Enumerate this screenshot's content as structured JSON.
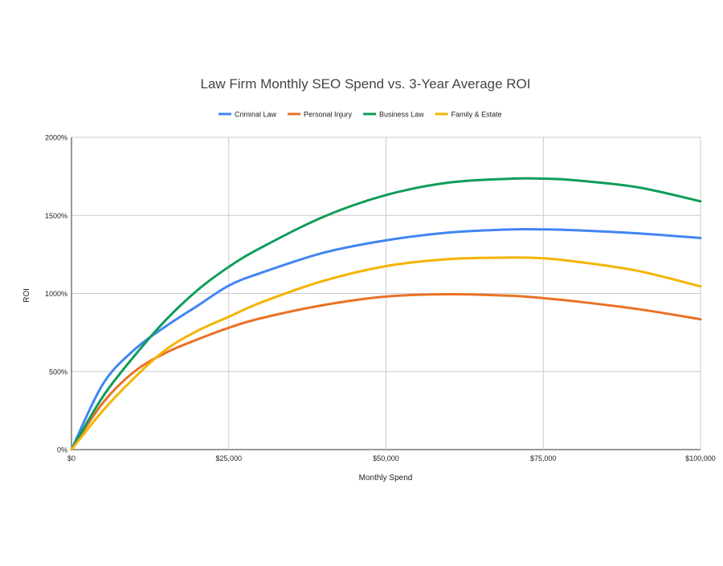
{
  "chart_data": {
    "type": "line",
    "title": "Law Firm Monthly SEO Spend vs.  3-Year Average ROI",
    "xlabel": "Monthly Spend",
    "ylabel": "ROI",
    "xlim": [
      0,
      100000
    ],
    "ylim": [
      0,
      2000
    ],
    "x_ticks": [
      0,
      25000,
      50000,
      75000,
      100000
    ],
    "x_tick_labels": [
      "$0",
      "$25,000",
      "$50,000",
      "$75,000",
      "$100,000"
    ],
    "y_ticks": [
      0,
      500,
      1000,
      1500,
      2000
    ],
    "y_tick_labels": [
      "0%",
      "500%",
      "1000%",
      "1500%",
      "2000%"
    ],
    "grid": true,
    "legend_position": "top",
    "x": [
      0,
      5000,
      10000,
      15000,
      20000,
      25000,
      30000,
      40000,
      50000,
      60000,
      70000,
      75000,
      80000,
      90000,
      100000
    ],
    "series": [
      {
        "name": "Criminal Law",
        "color": "#4285f4",
        "values": [
          0,
          420,
          640,
          790,
          920,
          1050,
          1130,
          1260,
          1340,
          1390,
          1410,
          1410,
          1405,
          1385,
          1355
        ]
      },
      {
        "name": "Personal Injury",
        "color": "#ea7125",
        "values": [
          0,
          300,
          500,
          620,
          705,
          780,
          840,
          925,
          980,
          995,
          985,
          970,
          950,
          900,
          835
        ]
      },
      {
        "name": "Business Law",
        "color": "#0f9d58",
        "values": [
          0,
          340,
          600,
          830,
          1020,
          1170,
          1290,
          1490,
          1630,
          1710,
          1735,
          1735,
          1725,
          1680,
          1590
        ]
      },
      {
        "name": "Family & Estate",
        "color": "#f4b400",
        "values": [
          0,
          250,
          460,
          640,
          760,
          850,
          940,
          1080,
          1175,
          1220,
          1230,
          1225,
          1205,
          1145,
          1045
        ]
      }
    ]
  }
}
